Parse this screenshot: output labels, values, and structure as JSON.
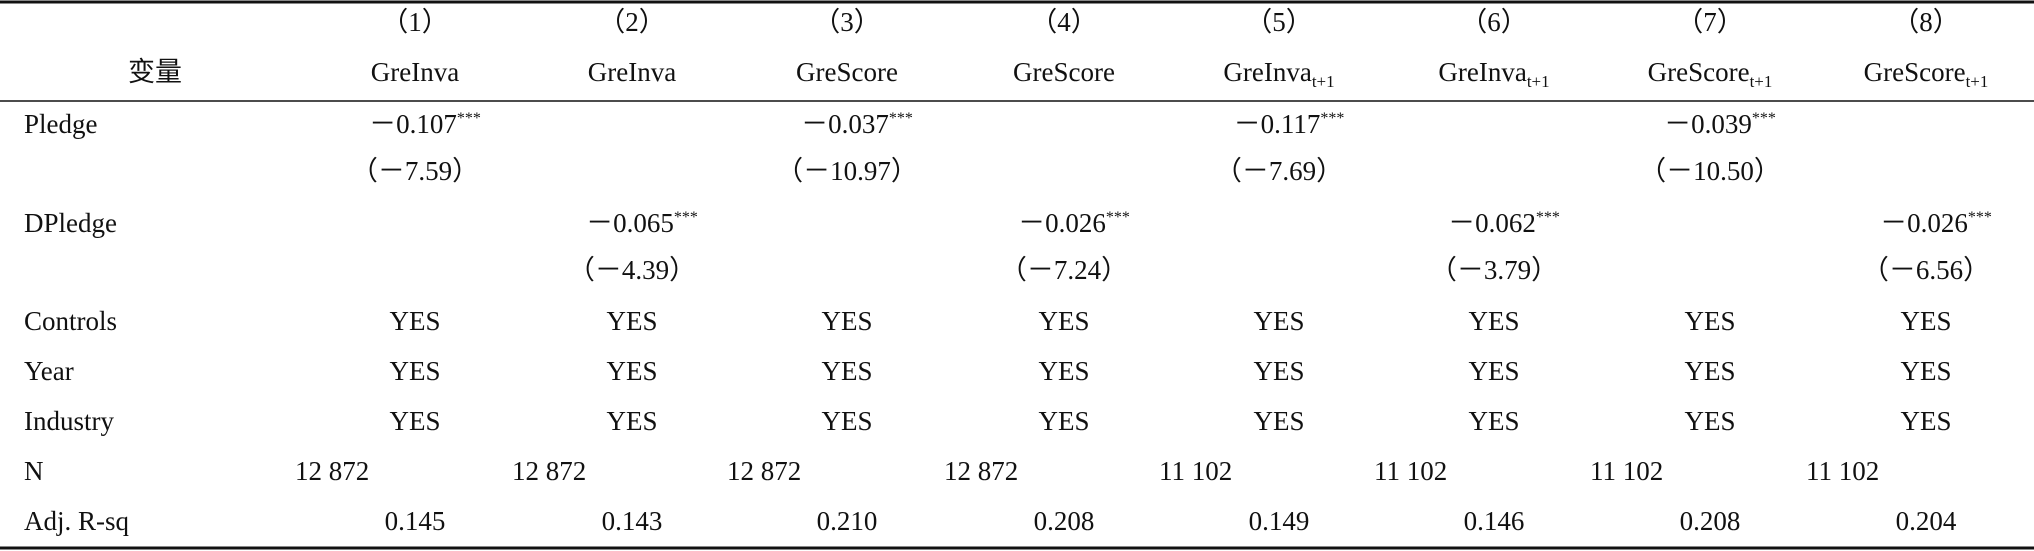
{
  "table": {
    "column_numbers": [
      "（1）",
      "（2）",
      "（3）",
      "（4）",
      "（5）",
      "（6）",
      "（7）",
      "（8）"
    ],
    "header_label": "变量",
    "columns": [
      {
        "text": "GreInva"
      },
      {
        "text": "GreInva"
      },
      {
        "text": "GreScore"
      },
      {
        "text": "GreScore"
      },
      {
        "text": "GreInva",
        "sub": "t+1"
      },
      {
        "text": "GreInva",
        "sub": "t+1"
      },
      {
        "text": "GreScore",
        "sub": "t+1"
      },
      {
        "text": "GreScore",
        "sub": "t+1"
      }
    ],
    "coef_rows": [
      {
        "label": "Pledge",
        "coef": [
          {
            "value": "－0.107",
            "stars": "***"
          },
          null,
          {
            "value": "－0.037",
            "stars": "***"
          },
          null,
          {
            "value": "－0.117",
            "stars": "***"
          },
          null,
          {
            "value": "－0.039",
            "stars": "***"
          },
          null
        ],
        "t": [
          "（－7.59）",
          null,
          "（－10.97）",
          null,
          "（－7.69）",
          null,
          "（－10.50）",
          null
        ]
      },
      {
        "label": "DPledge",
        "coef": [
          null,
          {
            "value": "－0.065",
            "stars": "***"
          },
          null,
          {
            "value": "－0.026",
            "stars": "***"
          },
          null,
          {
            "value": "－0.062",
            "stars": "***"
          },
          null,
          {
            "value": "－0.026",
            "stars": "***"
          }
        ],
        "t": [
          null,
          "（－4.39）",
          null,
          "（－7.24）",
          null,
          "（－3.79）",
          null,
          "（－6.56）"
        ]
      }
    ],
    "rows": [
      {
        "label": "Controls",
        "cells": [
          "YES",
          "YES",
          "YES",
          "YES",
          "YES",
          "YES",
          "YES",
          "YES"
        ]
      },
      {
        "label": "Year",
        "cells": [
          "YES",
          "YES",
          "YES",
          "YES",
          "YES",
          "YES",
          "YES",
          "YES"
        ]
      },
      {
        "label": "Industry",
        "cells": [
          "YES",
          "YES",
          "YES",
          "YES",
          "YES",
          "YES",
          "YES",
          "YES"
        ]
      },
      {
        "label": "N",
        "cells": [
          "12 872",
          "12 872",
          "12 872",
          "12 872",
          "11 102",
          "11 102",
          "11 102",
          "11 102"
        ]
      },
      {
        "label": "Adj. R-sq",
        "cells": [
          "0.145",
          "0.143",
          "0.210",
          "0.208",
          "0.149",
          "0.146",
          "0.208",
          "0.204"
        ]
      }
    ]
  }
}
